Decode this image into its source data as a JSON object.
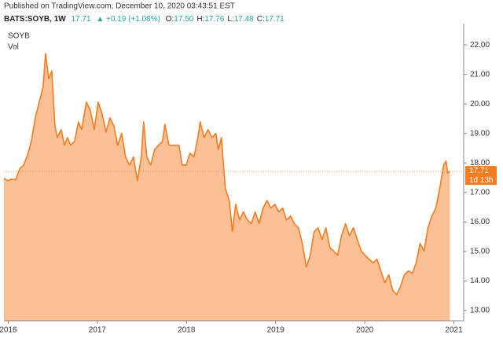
{
  "chart_data": {
    "type": "area",
    "published": "Published on TradingView.com, December 10, 2020 03:43:51 EST",
    "header": {
      "symbol": "BATS:SOYB, 1W",
      "last": "17.71",
      "change": "+0.19 (+1.08%)",
      "ohlc": [
        {
          "label": "O:",
          "value": "17.50"
        },
        {
          "label": "H:",
          "value": "17.76"
        },
        {
          "label": "L:",
          "value": "17.48"
        },
        {
          "label": "C:",
          "value": "17.71"
        }
      ]
    },
    "legend": [
      "SOYB",
      "Vol"
    ],
    "countdown": "1d 13h",
    "last_value": 17.71,
    "line_color": "#f57c1f",
    "fill_color": "#fbb584",
    "x": [
      2015.952,
      2015.996,
      2016.04,
      2016.084,
      2016.128,
      2016.172,
      2016.216,
      2016.26,
      2016.304,
      2016.348,
      2016.392,
      2016.419,
      2016.454,
      2016.489,
      2016.524,
      2016.551,
      2016.595,
      2016.63,
      2016.665,
      2016.7,
      2016.744,
      2016.789,
      2016.824,
      2016.877,
      2016.921,
      2016.965,
      2017.009,
      2017.053,
      2017.097,
      2017.141,
      2017.185,
      2017.229,
      2017.273,
      2017.317,
      2017.361,
      2017.405,
      2017.449,
      2017.493,
      2017.52,
      2017.555,
      2017.599,
      2017.643,
      2017.687,
      2017.731,
      2017.758,
      2017.802,
      2017.863,
      2017.916,
      2017.952,
      2017.996,
      2018.04,
      2018.084,
      2018.128,
      2018.154,
      2018.198,
      2018.242,
      2018.286,
      2018.33,
      2018.357,
      2018.392,
      2018.436,
      2018.48,
      2018.515,
      2018.551,
      2018.595,
      2018.639,
      2018.683,
      2018.727,
      2018.771,
      2018.815,
      2018.859,
      2018.903,
      2018.947,
      2018.991,
      2019.035,
      2019.079,
      2019.123,
      2019.167,
      2019.211,
      2019.256,
      2019.3,
      2019.344,
      2019.388,
      2019.432,
      2019.476,
      2019.52,
      2019.564,
      2019.608,
      2019.652,
      2019.696,
      2019.74,
      2019.784,
      2019.828,
      2019.872,
      2019.916,
      2019.96,
      2020.004,
      2020.048,
      2020.093,
      2020.137,
      2020.181,
      2020.225,
      2020.269,
      2020.313,
      2020.357,
      2020.401,
      2020.445,
      2020.489,
      2020.533,
      2020.577,
      2020.621,
      2020.665,
      2020.709,
      2020.753,
      2020.797,
      2020.841,
      2020.885,
      2020.912,
      2020.93,
      2020.956
    ],
    "values": [
      17.48,
      17.4,
      17.45,
      17.43,
      17.8,
      17.93,
      18.25,
      18.73,
      19.53,
      20.06,
      20.59,
      21.71,
      20.86,
      21.12,
      19.26,
      18.86,
      19.13,
      18.6,
      18.86,
      18.6,
      18.73,
      19.39,
      19.13,
      20.06,
      19.79,
      19.13,
      20.06,
      19.66,
      19.05,
      19.53,
      19.26,
      18.6,
      19.0,
      18.2,
      17.93,
      18.2,
      17.4,
      18.2,
      19.39,
      18.2,
      17.93,
      18.46,
      18.6,
      18.73,
      19.31,
      18.6,
      18.6,
      18.6,
      17.93,
      17.93,
      18.33,
      18.2,
      18.86,
      19.39,
      18.86,
      19.13,
      18.86,
      19.0,
      18.46,
      18.86,
      17.13,
      16.73,
      15.67,
      16.6,
      16.07,
      16.34,
      16.07,
      15.94,
      16.34,
      15.94,
      16.47,
      16.73,
      16.47,
      16.6,
      16.34,
      16.47,
      16.07,
      16.2,
      15.94,
      15.8,
      15.27,
      14.47,
      14.87,
      15.67,
      15.8,
      15.4,
      15.8,
      15.14,
      15.01,
      14.87,
      15.54,
      15.94,
      15.54,
      15.8,
      15.4,
      15.01,
      14.87,
      14.74,
      14.61,
      14.74,
      14.34,
      13.94,
      14.21,
      13.68,
      13.54,
      13.81,
      14.21,
      14.34,
      14.26,
      14.61,
      15.27,
      15.01,
      15.8,
      16.2,
      16.47,
      17.13,
      17.93,
      18.06,
      17.66,
      17.71
    ],
    "xlim": [
      2015.952,
      2021.11
    ],
    "xticks": [
      2016,
      2017,
      2018,
      2019,
      2020,
      2021
    ],
    "ylim": [
      12.65,
      22.59
    ],
    "yticks": [
      {
        "value": 13,
        "label": "13.00"
      },
      {
        "value": 14,
        "label": "14.00"
      },
      {
        "value": 15,
        "label": "15.00"
      },
      {
        "value": 16,
        "label": "16.00"
      },
      {
        "value": 17,
        "label": "17.00"
      },
      {
        "value": 18,
        "label": "18.00"
      },
      {
        "value": 19,
        "label": "19.00"
      },
      {
        "value": 20,
        "label": "20.00"
      },
      {
        "value": 21,
        "label": "21.00"
      },
      {
        "value": 22,
        "label": "22.00"
      }
    ]
  }
}
